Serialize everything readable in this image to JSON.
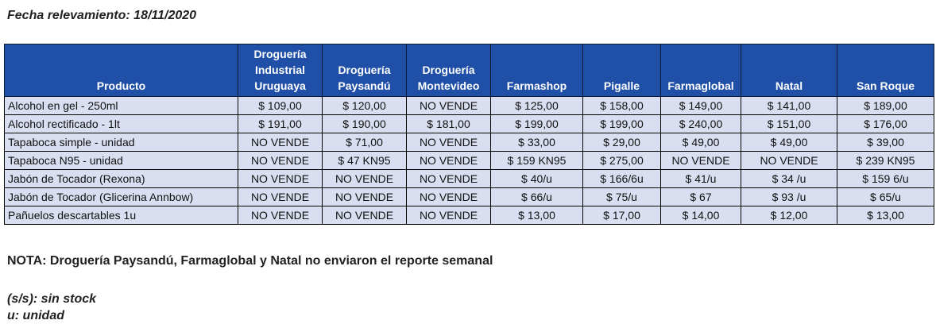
{
  "date_line": "Fecha relevamiento: 18/11/2020",
  "table": {
    "headers": [
      "Producto",
      "Droguería Industrial Uruguaya",
      "Droguería Paysandú",
      "Droguería Montevideo",
      "Farmashop",
      "Pigalle",
      "Farmaglobal",
      "Natal",
      "San Roque"
    ],
    "rows": [
      [
        "Alcohol en gel  - 250ml",
        "$ 109,00",
        "$ 120,00",
        "NO VENDE",
        "$ 125,00",
        "$ 158,00",
        "$ 149,00",
        "$ 141,00",
        "$ 189,00"
      ],
      [
        "Alcohol rectificado - 1lt",
        "$ 191,00",
        "$ 190,00",
        "$ 181,00",
        "$ 199,00",
        "$ 199,00",
        "$ 240,00",
        "$ 151,00",
        "$ 176,00"
      ],
      [
        "Tapaboca simple - unidad",
        "NO VENDE",
        "$ 71,00",
        "NO VENDE",
        "$ 33,00",
        "$ 29,00",
        "$ 49,00",
        "$ 49,00",
        "$ 39,00"
      ],
      [
        "Tapaboca N95 - unidad",
        "NO VENDE",
        "$ 47  KN95",
        "NO VENDE",
        "$ 159  KN95",
        "$ 275,00",
        "NO VENDE",
        "NO VENDE",
        "$ 239  KN95"
      ],
      [
        "Jabón de Tocador (Rexona)",
        "NO VENDE",
        "NO VENDE",
        "NO VENDE",
        "$ 40/u",
        "$ 166/6u",
        "$ 41/u",
        "$ 34 /u",
        "$ 159 6/u"
      ],
      [
        "Jabón de Tocador (Glicerina Annbow)",
        "NO VENDE",
        "NO VENDE",
        "NO VENDE",
        "$ 66/u",
        "$ 75/u",
        "$ 67",
        "$ 93 /u",
        "$ 65/u"
      ],
      [
        "Pañuelos descartables 1u",
        "NO VENDE",
        "NO VENDE",
        "NO VENDE",
        "$ 13,00",
        "$ 17,00",
        "$ 14,00",
        "$ 12,00",
        "$ 13,00"
      ]
    ]
  },
  "note": "NOTA: Droguería Paysandú, Farmaglobal y Natal no enviaron el reporte semanal",
  "legend": [
    "(s/s): sin stock",
    "u: unidad"
  ],
  "colors": {
    "header_bg": "#1f4fa6",
    "cell_bg": "#d9dff0"
  }
}
